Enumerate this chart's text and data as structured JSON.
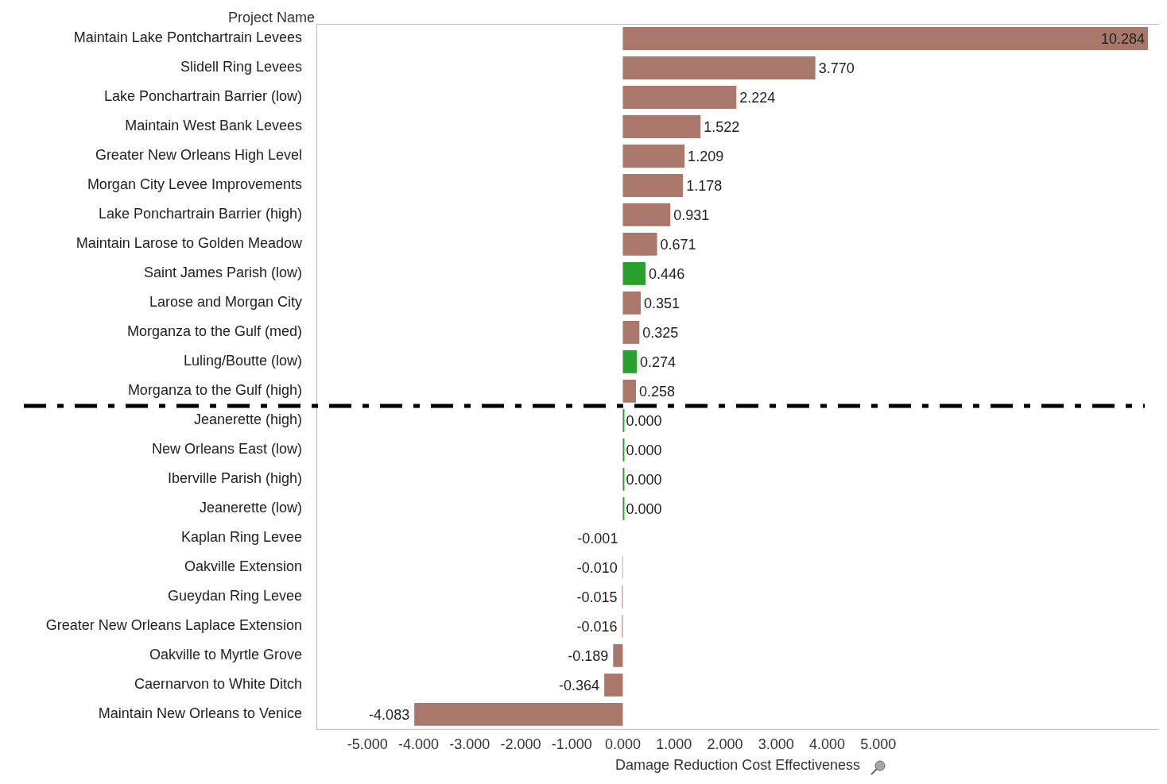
{
  "chart_data": {
    "type": "bar",
    "orientation": "horizontal",
    "ylabel": "Project Name",
    "xlabel": "Damage Reduction Cost Effectiveness",
    "categories": [
      "Maintain Lake Pontchartrain Levees",
      "Slidell Ring Levees",
      "Lake Ponchartrain Barrier (low)",
      "Maintain West Bank Levees",
      "Greater New Orleans High Level",
      "Morgan City Levee Improvements",
      "Lake Ponchartrain Barrier (high)",
      "Maintain Larose to Golden Meadow",
      "Saint James Parish (low)",
      "Larose and Morgan City",
      "Morganza to the Gulf (med)",
      "Luling/Boutte (low)",
      "Morganza to the Gulf (high)",
      "Jeanerette (high)",
      "New Orleans East (low)",
      "Iberville Parish (high)",
      "Jeanerette (low)",
      "Kaplan Ring Levee",
      "Oakville Extension",
      "Gueydan Ring Levee",
      "Greater New Orleans Laplace Extension",
      "Oakville to Myrtle Grove",
      "Caernarvon to White Ditch",
      "Maintain New Orleans to Venice"
    ],
    "values": [
      10.284,
      3.77,
      2.224,
      1.522,
      1.209,
      1.178,
      0.931,
      0.671,
      0.446,
      0.351,
      0.325,
      0.274,
      0.258,
      0,
      0,
      0,
      0,
      -0.001,
      -0.01,
      -0.015,
      -0.016,
      -0.189,
      -0.364,
      -4.083
    ],
    "value_labels": [
      "10.284",
      "3.770",
      "2.224",
      "1.522",
      "1.209",
      "1.178",
      "0.931",
      "0.671",
      "0.446",
      "0.351",
      "0.325",
      "0.274",
      "0.258",
      "0.000",
      "0.000",
      "0.000",
      "0.000",
      "-0.001",
      "-0.010",
      "-0.015",
      "-0.016",
      "-0.189",
      "-0.364",
      "-4.083"
    ],
    "colors": [
      "#a9786a",
      "#a9786a",
      "#a9786a",
      "#a9786a",
      "#a9786a",
      "#a9786a",
      "#a9786a",
      "#a9786a",
      "#2ca02c",
      "#a9786a",
      "#a9786a",
      "#2ca02c",
      "#a9786a",
      "#2ca02c",
      "#2ca02c",
      "#2ca02c",
      "#2ca02c",
      "#a9786a",
      "#a9786a",
      "#a9786a",
      "#a9786a",
      "#a9786a",
      "#a9786a",
      "#a9786a"
    ],
    "xlim": [
      -6,
      10.5
    ],
    "xticks": [
      {
        "value": -5,
        "label": "-5.000"
      },
      {
        "value": -4,
        "label": "-4.000"
      },
      {
        "value": -3,
        "label": "-3.000"
      },
      {
        "value": -2,
        "label": "-2.000"
      },
      {
        "value": -1,
        "label": "-1.000"
      },
      {
        "value": 0,
        "label": "0.000"
      },
      {
        "value": 1,
        "label": "1.000"
      },
      {
        "value": 2,
        "label": "2.000"
      },
      {
        "value": 3,
        "label": "3.000"
      },
      {
        "value": 4,
        "label": "4.000"
      },
      {
        "value": 5,
        "label": "5.000"
      }
    ],
    "grid": false,
    "legend": false
  }
}
